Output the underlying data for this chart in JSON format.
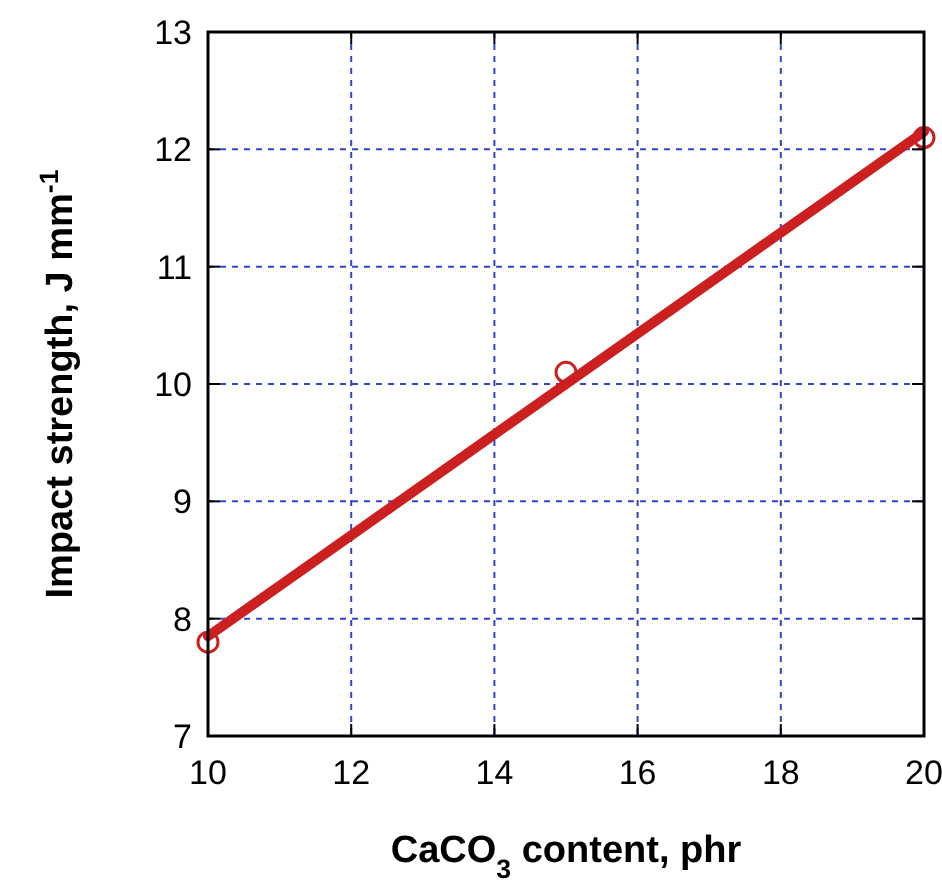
{
  "chart_data": {
    "type": "scatter",
    "xlabel": "CaCO$_{3}$ content, phr",
    "ylabel": "Impact strength, J mm$^{-1}$",
    "xlim": [
      10,
      20
    ],
    "ylim": [
      7,
      13
    ],
    "xticks": [
      10,
      12,
      14,
      16,
      18,
      20
    ],
    "yticks": [
      7,
      8,
      9,
      10,
      11,
      12,
      13
    ],
    "grid": true,
    "marker": "circle",
    "series": [
      {
        "type": "line",
        "color": "#cc2020",
        "x": [
          10,
          20
        ],
        "values": [
          7.85,
          12.15
        ],
        "line_style": "solid",
        "marker": "none"
      },
      {
        "type": "scatter",
        "color": "#cc2020",
        "x": [
          10,
          15,
          20
        ],
        "values": [
          7.8,
          10.1,
          12.1
        ]
      }
    ]
  }
}
